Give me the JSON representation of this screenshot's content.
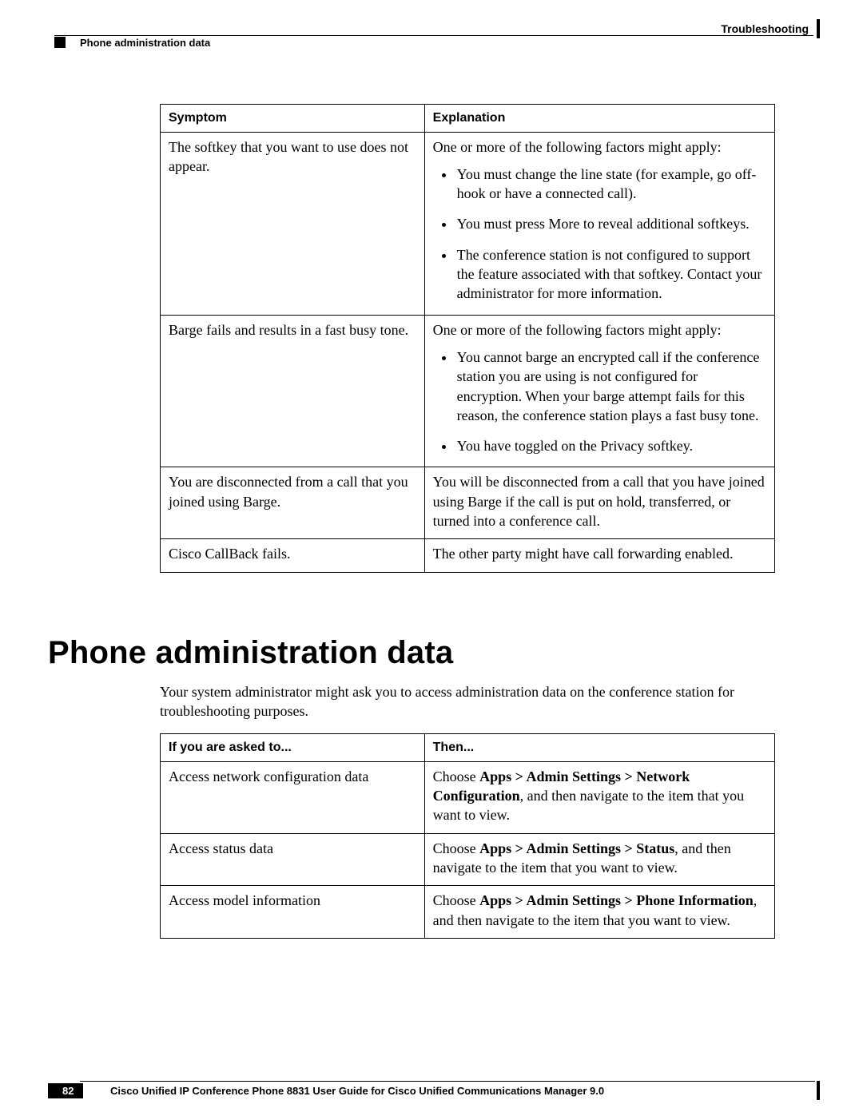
{
  "header": {
    "right_label": "Troubleshooting",
    "left_label": "Phone administration data"
  },
  "table1": {
    "columns": [
      "Symptom",
      "Explanation"
    ],
    "rows": [
      {
        "symptom": "The softkey that you want to use does not appear.",
        "explanation_lead": "One or more of the following factors might apply:",
        "bullets": [
          "You must change the line state (for example, go off-hook or have a connected call).",
          "You must press More to reveal additional softkeys.",
          "The conference station is not configured to support the feature associated with that softkey. Contact your administrator for more information."
        ]
      },
      {
        "symptom": "Barge fails and results in a fast busy tone.",
        "explanation_lead": "One or more of the following factors might apply:",
        "bullets": [
          "You cannot barge an encrypted call if the conference station you are using is not configured for encryption. When your barge attempt fails for this reason, the conference station plays a fast busy tone.",
          "You have toggled on the Privacy softkey."
        ]
      },
      {
        "symptom": "You are disconnected from a call that you joined using Barge.",
        "explanation": "You will be disconnected from a call that you have joined using Barge if the call is put on hold, transferred, or turned into a conference call."
      },
      {
        "symptom": "Cisco CallBack fails.",
        "explanation": "The other party might have call forwarding enabled."
      }
    ]
  },
  "section": {
    "title": "Phone administration data",
    "intro": "Your system administrator might ask you to access administration data on the conference station for troubleshooting purposes."
  },
  "table2": {
    "columns": [
      "If you are asked to...",
      "Then..."
    ],
    "rows": [
      {
        "ask": "Access network configuration data",
        "then_pre": "Choose ",
        "then_bold": "Apps > Admin Settings > Network Configuration",
        "then_post": ", and then navigate to the item that you want to view."
      },
      {
        "ask": "Access status data",
        "then_pre": "Choose ",
        "then_bold": "Apps > Admin Settings > Status",
        "then_post": ", and then navigate to the item that you want to view."
      },
      {
        "ask": "Access model information",
        "then_pre": "Choose ",
        "then_bold": "Apps > Admin Settings > Phone Information",
        "then_post": ", and then navigate to the item that you want to view."
      }
    ]
  },
  "footer": {
    "title": "Cisco Unified IP Conference Phone 8831 User Guide for Cisco Unified Communications Manager 9.0",
    "page": "82"
  }
}
